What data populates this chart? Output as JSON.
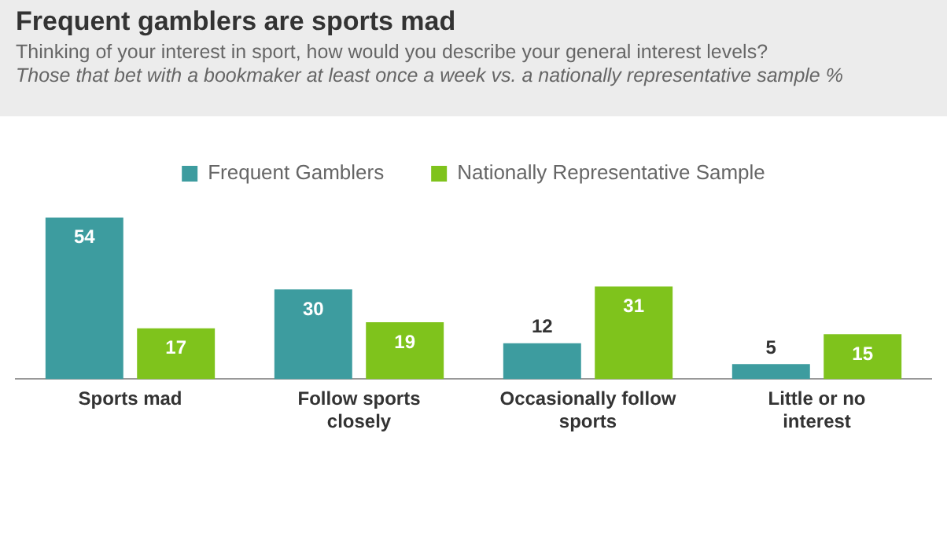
{
  "chart_data": {
    "type": "bar",
    "title": "Frequent gamblers are sports mad",
    "subtitle": "Thinking of your interest in sport, how would you describe your general interest levels?",
    "annotations": [
      "Those that bet with a bookmaker at least once a week vs. a nationally representative sample %"
    ],
    "categories": [
      "Sports mad",
      "Follow sports closely",
      "Occasionally follow sports",
      "Little or no interest"
    ],
    "series": [
      {
        "name": "Frequent Gamblers",
        "color": "#3d9c9f",
        "values": [
          54,
          30,
          12,
          5
        ]
      },
      {
        "name": "Nationally Representative Sample",
        "color": "#7fc31c",
        "values": [
          17,
          19,
          31,
          15
        ]
      }
    ],
    "data_labels": true,
    "grid": false,
    "legend": "top"
  }
}
